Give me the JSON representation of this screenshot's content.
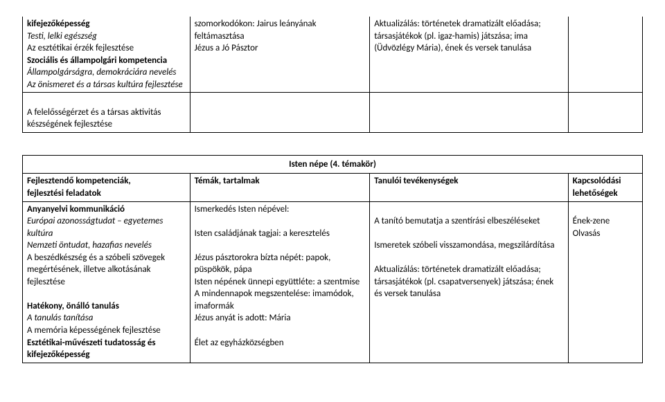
{
  "table1": {
    "row1": {
      "c1_line1": "kifejezőképesség",
      "c1_line2_i": "Testi, lelki egészség",
      "c1_line3": "Az esztétikai érzék fejlesztése",
      "c1_line4_b": "Szociális és állampolgári kompetencia",
      "c1_line5_i": "Állampolgárságra, demokráciára nevelés",
      "c1_line6_i": "Az önismeret és a társas kultúra fejlesztése",
      "c2_line1": "szomorkodókon: Jairus leányának feltámasztása",
      "c2_line2": "Jézus a Jó Pásztor",
      "c3_line1": "Aktualizálás: történetek dramatizált előadása; társasjátékok (pl. igaz-hamis) játszása; ima (Üdvözlégy Mária), ének és versek tanulása"
    },
    "row2": {
      "c1": "A felelősségérzet és a társas aktivitás készségének fejlesztése"
    }
  },
  "table2": {
    "title": "Isten népe (4. témakör)",
    "headers": {
      "h1_l1": "Fejlesztendő kompetenciák,",
      "h1_l2": "fejlesztési feladatok",
      "h2": "Témák, tartalmak",
      "h3": "Tanulói tevékenységek",
      "h4_l1": "Kapcsolódási",
      "h4_l2": "lehetőségek"
    },
    "body": {
      "c1_l1_b": "Anyanyelvi kommunikáció",
      "c1_l2_i": "Európai azonosságtudat – egyetemes kultúra",
      "c1_l3_i": "Nemzeti öntudat, hazafias nevelés",
      "c1_l4": "A beszédkészség és a szóbeli szövegek megértésének, illetve alkotásának fejlesztése",
      "c1_l5_b": "Hatékony, önálló tanulás",
      "c1_l6_i": "A tanulás tanítása",
      "c1_l7": "A memória képességének fejlesztése",
      "c1_l8_b": "Esztétikai-művészeti tudatosság és kifejezőképesség",
      "c2_l1": "Ismerkedés Isten népével:",
      "c2_l2": "Isten családjának tagjai: a keresztelés",
      "c2_l3": "Jézus pásztorokra bízta népét: papok, püspökök, pápa",
      "c2_l4": "Isten népének ünnepi együttléte: a szentmise",
      "c2_l5": "A mindennapok megszentelése: imamódok, imaformák",
      "c2_l6": "Jézus anyát is adott: Mária",
      "c2_l7": "Élet az egyházközségben",
      "c3_l1": "A tanító bemutatja a szentírási elbeszéléseket",
      "c3_l2": "Ismeretek szóbeli visszamondása, megszilárdítása",
      "c3_l3": "Aktualizálás: történetek dramatizált előadása; társasjátékok (pl. csapatversenyek) játszása; ének és versek tanulása",
      "c4_l1": "Ének-zene",
      "c4_l2": "Olvasás"
    }
  }
}
